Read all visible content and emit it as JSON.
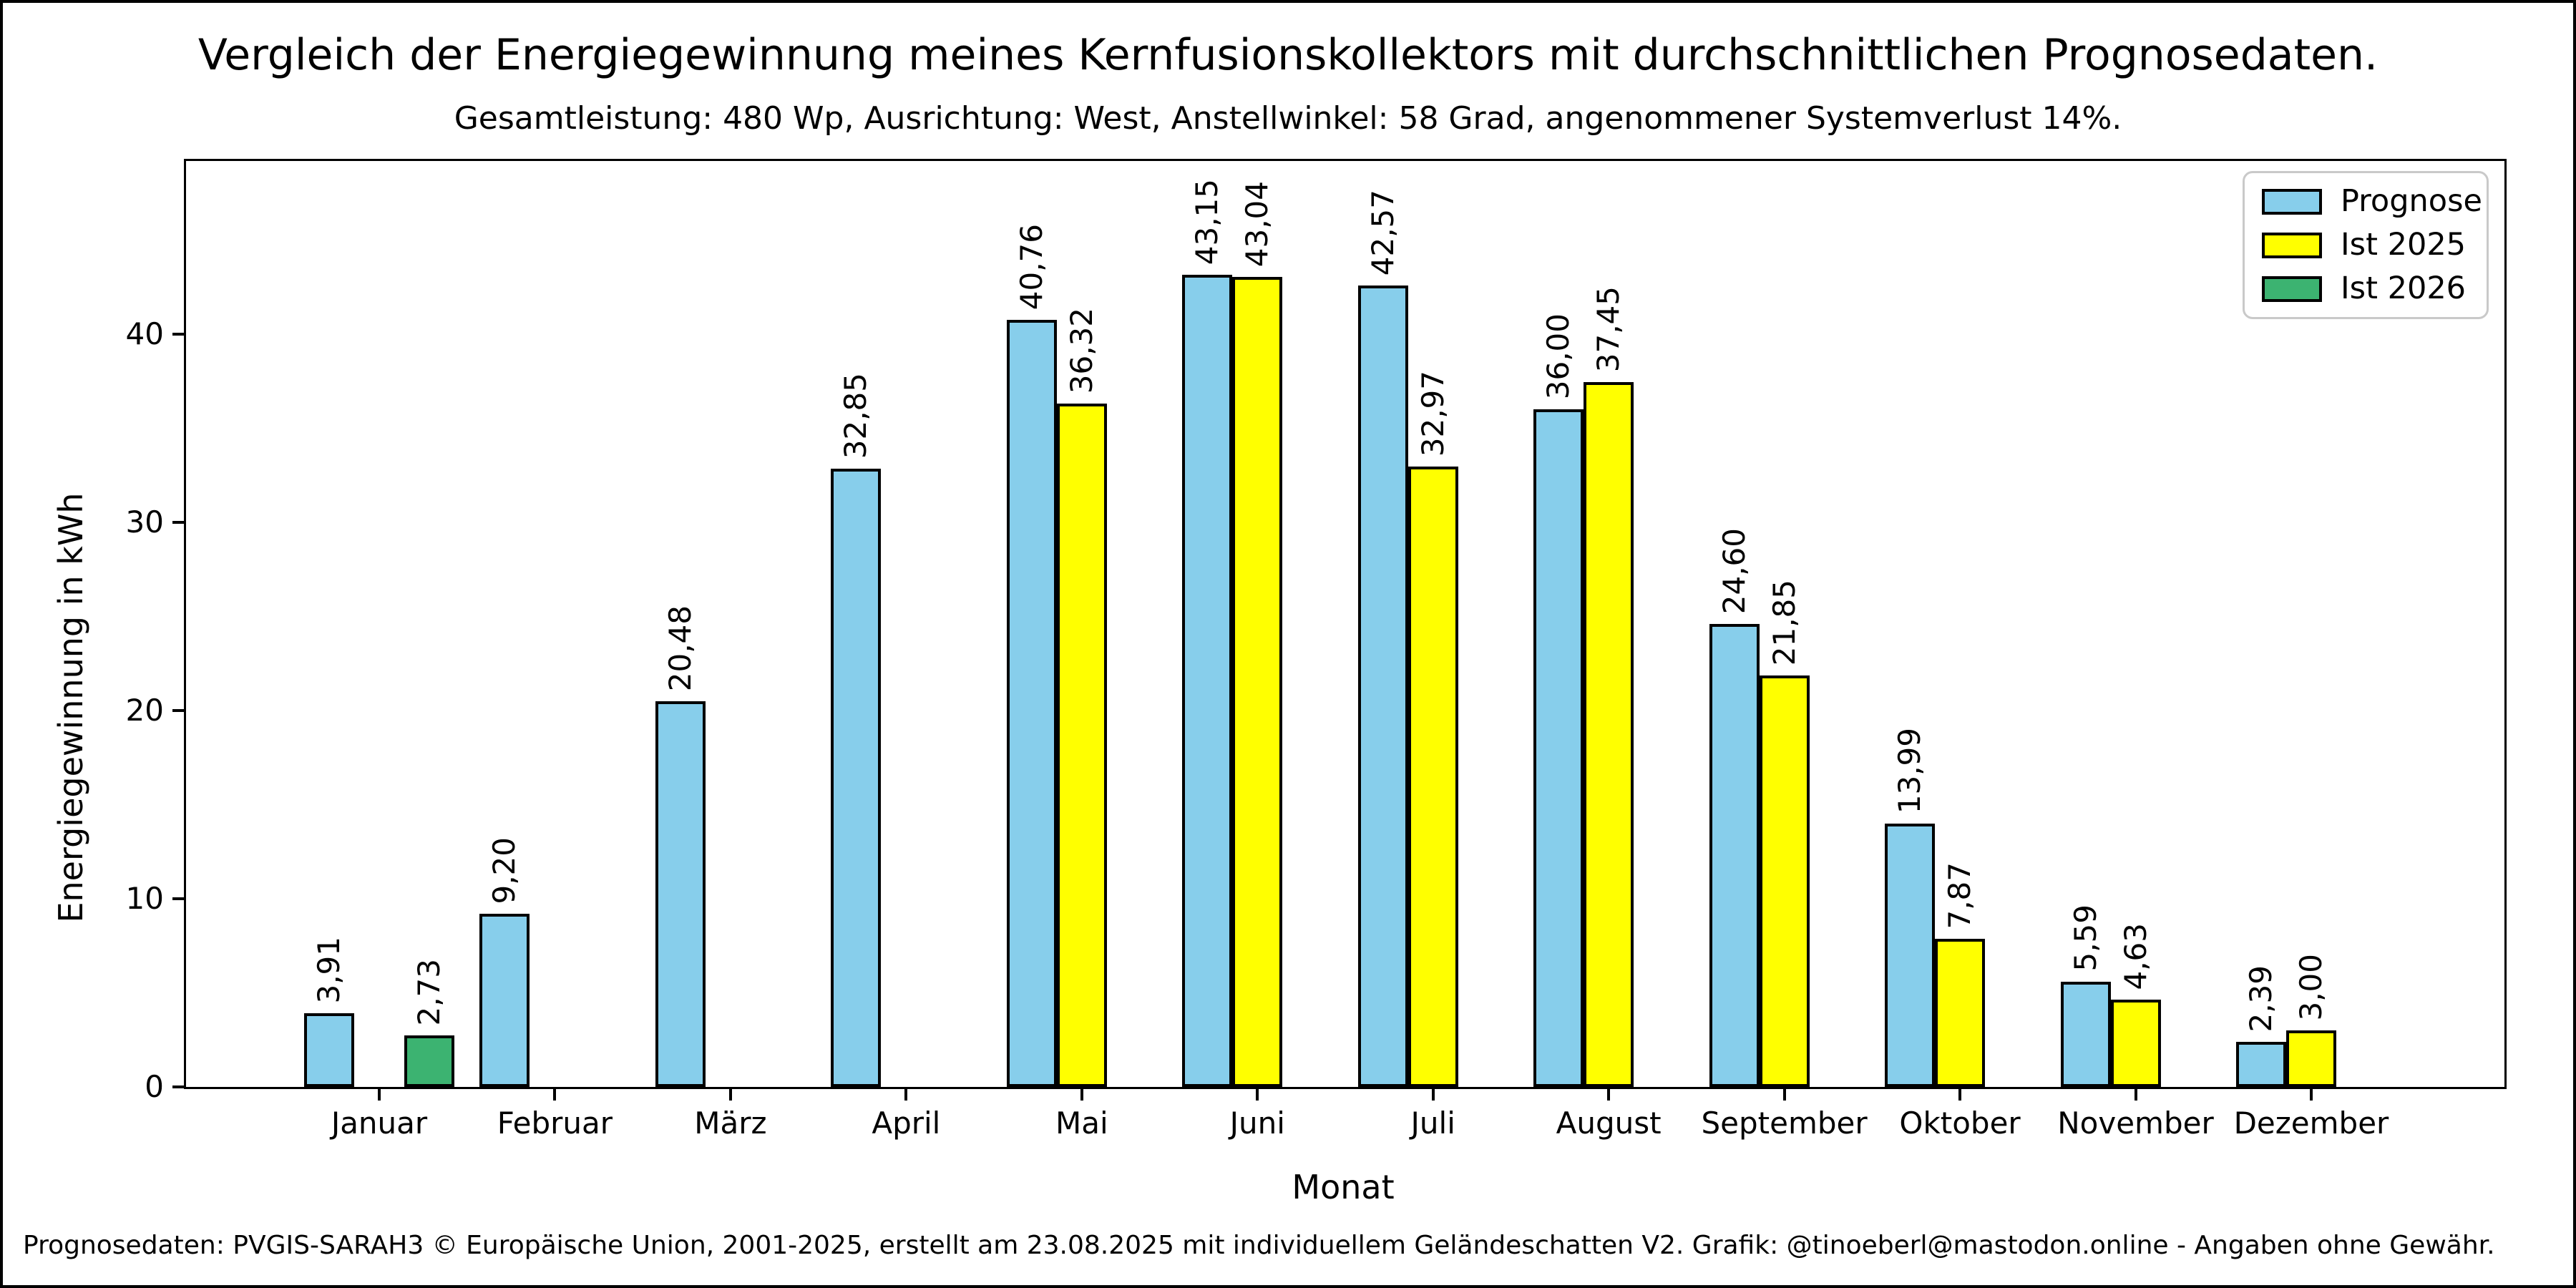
{
  "chart_data": {
    "type": "bar",
    "title": "Vergleich der Energiegewinnung meines Kernfusionskollektors mit durchschnittlichen Prognosedaten.",
    "subtitle": "Gesamtleistung: 480 Wp, Ausrichtung: West, Anstellwinkel: 58 Grad, angenommener Systemverlust 14%.",
    "xlabel": "Monat",
    "ylabel": "Energiegewinnung in kWh",
    "categories": [
      "Januar",
      "Februar",
      "März",
      "April",
      "Mai",
      "Juni",
      "Juli",
      "August",
      "September",
      "Oktober",
      "November",
      "Dezember"
    ],
    "series": [
      {
        "name": "Prognose",
        "color": "#87CEEB",
        "values": [
          3.91,
          9.2,
          20.48,
          32.85,
          40.76,
          43.15,
          42.57,
          36.0,
          24.6,
          13.99,
          5.59,
          2.39
        ],
        "labels": [
          "3,91",
          "9,20",
          "20,48",
          "32,85",
          "40,76",
          "43,15",
          "42,57",
          "36,00",
          "24,60",
          "13,99",
          "5,59",
          "2,39"
        ]
      },
      {
        "name": "Ist 2025",
        "color": "#FFFF00",
        "values": [
          null,
          null,
          null,
          null,
          36.32,
          43.04,
          32.97,
          37.45,
          21.85,
          7.87,
          4.63,
          3.0
        ],
        "labels": [
          null,
          null,
          null,
          null,
          "36,32",
          "43,04",
          "32,97",
          "37,45",
          "21,85",
          "7,87",
          "4,63",
          "3,00"
        ]
      },
      {
        "name": "Ist 2026",
        "color": "#3CB371",
        "values": [
          2.73,
          null,
          null,
          null,
          null,
          null,
          null,
          null,
          null,
          null,
          null,
          null
        ],
        "labels": [
          "2,73",
          null,
          null,
          null,
          null,
          null,
          null,
          null,
          null,
          null,
          null,
          null
        ]
      }
    ],
    "yticks": [
      0,
      10,
      20,
      30,
      40
    ],
    "ylim": [
      0,
      49.2
    ],
    "grid": false,
    "legend_position": "top-right",
    "bar_edge_color": "#000000",
    "footnote": "Prognosedaten: PVGIS-SARAH3 © Europäische Union, 2001-2025, erstellt am 23.08.2025 mit individuellem Geländeschatten V2. Grafik: @tinoeberl@mastodon.online - Angaben ohne Gewähr."
  }
}
